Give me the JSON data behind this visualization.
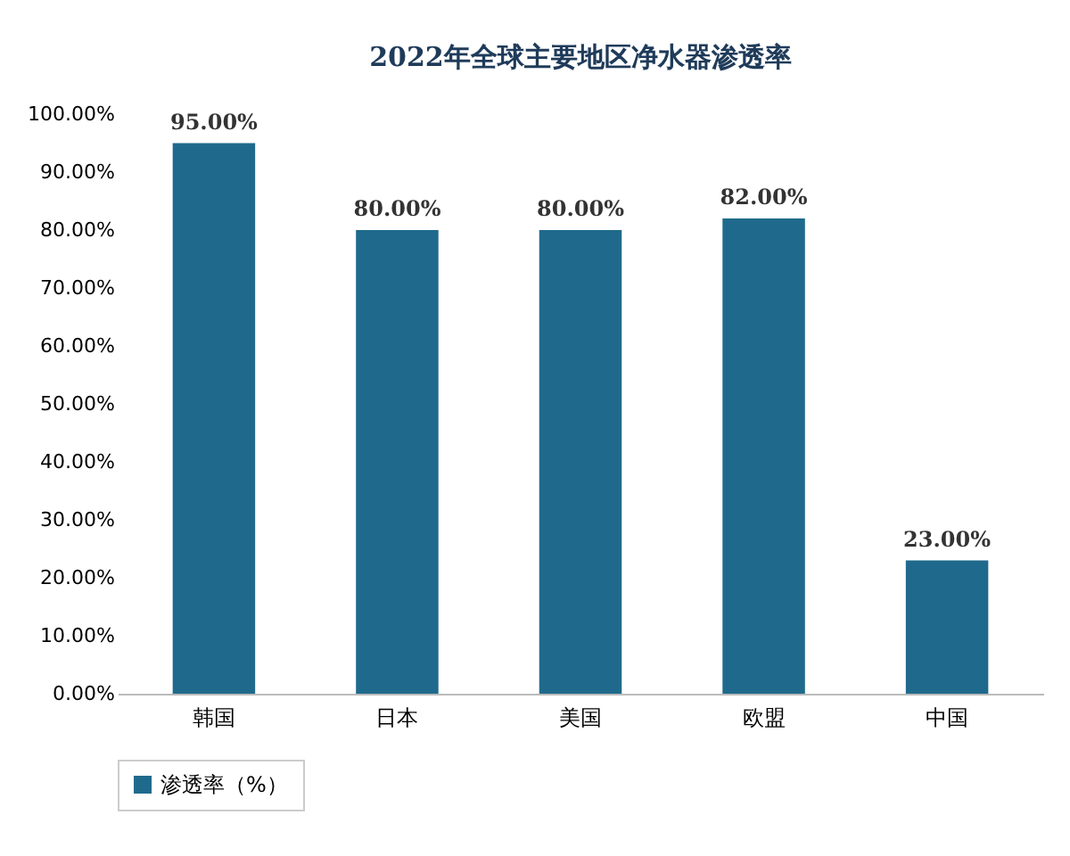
{
  "chart_data": {
    "type": "bar",
    "title": "2022年全球主要地区净水器渗透率",
    "categories": [
      "韩国",
      "日本",
      "美国",
      "欧盟",
      "中国"
    ],
    "series": [
      {
        "name": "渗透率（%）",
        "color": "#1f6a8c",
        "values": [
          95,
          80,
          80,
          82,
          23
        ]
      }
    ],
    "value_labels": [
      "95.00%",
      "80.00%",
      "80.00%",
      "82.00%",
      "23.00%"
    ],
    "ylim": [
      0,
      100
    ],
    "yticks": [
      {
        "value": 0,
        "label": "0.00%"
      },
      {
        "value": 10,
        "label": "10.00%"
      },
      {
        "value": 20,
        "label": "20.00%"
      },
      {
        "value": 30,
        "label": "30.00%"
      },
      {
        "value": 40,
        "label": "40.00%"
      },
      {
        "value": 50,
        "label": "50.00%"
      },
      {
        "value": 60,
        "label": "60.00%"
      },
      {
        "value": 70,
        "label": "70.00%"
      },
      {
        "value": 80,
        "label": "80.00%"
      },
      {
        "value": 90,
        "label": "90.00%"
      },
      {
        "value": 100,
        "label": "100.00%"
      }
    ],
    "legend": "bottom",
    "grid": false
  }
}
